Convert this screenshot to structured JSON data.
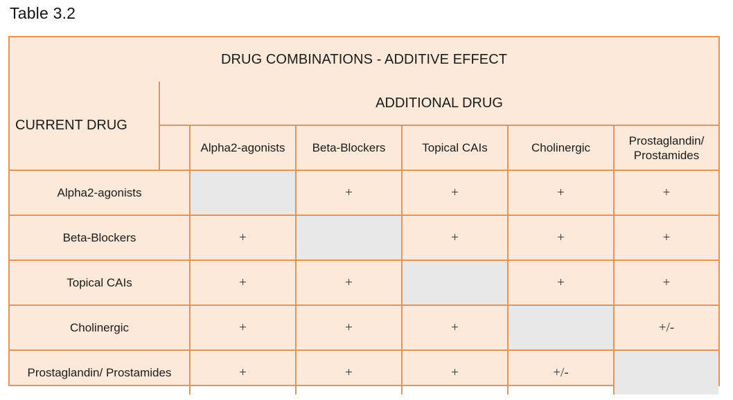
{
  "caption": "Table 3.2",
  "table": {
    "title": "DRUG COMBINATIONS - ADDITIVE EFFECT",
    "current_label": "CURRENT DRUG",
    "additional_label": "ADDITIONAL DRUG",
    "columns": [
      "Alpha2-agonists",
      "Beta-Blockers",
      "Topical CAIs",
      "Cholinergic",
      "Prostaglandin/\nProstamides"
    ],
    "rows": [
      {
        "label": "Alpha2-agonists",
        "cells": [
          "",
          "+",
          "+",
          "+",
          "+"
        ]
      },
      {
        "label": "Beta-Blockers",
        "cells": [
          "+",
          "",
          "+",
          "+",
          "+"
        ]
      },
      {
        "label": "Topical CAIs",
        "cells": [
          "+",
          "+",
          "",
          "+",
          "+"
        ]
      },
      {
        "label": "Cholinergic",
        "cells": [
          "+",
          "+",
          "+",
          "",
          "+/-"
        ]
      },
      {
        "label": "Prostaglandin/ Prostamides",
        "cells": [
          "+",
          "+",
          "+",
          "+/-",
          ""
        ]
      }
    ],
    "colors": {
      "border": "#e8924f",
      "background": "#fde9d9",
      "diagonal": "#e8e8e8"
    }
  }
}
